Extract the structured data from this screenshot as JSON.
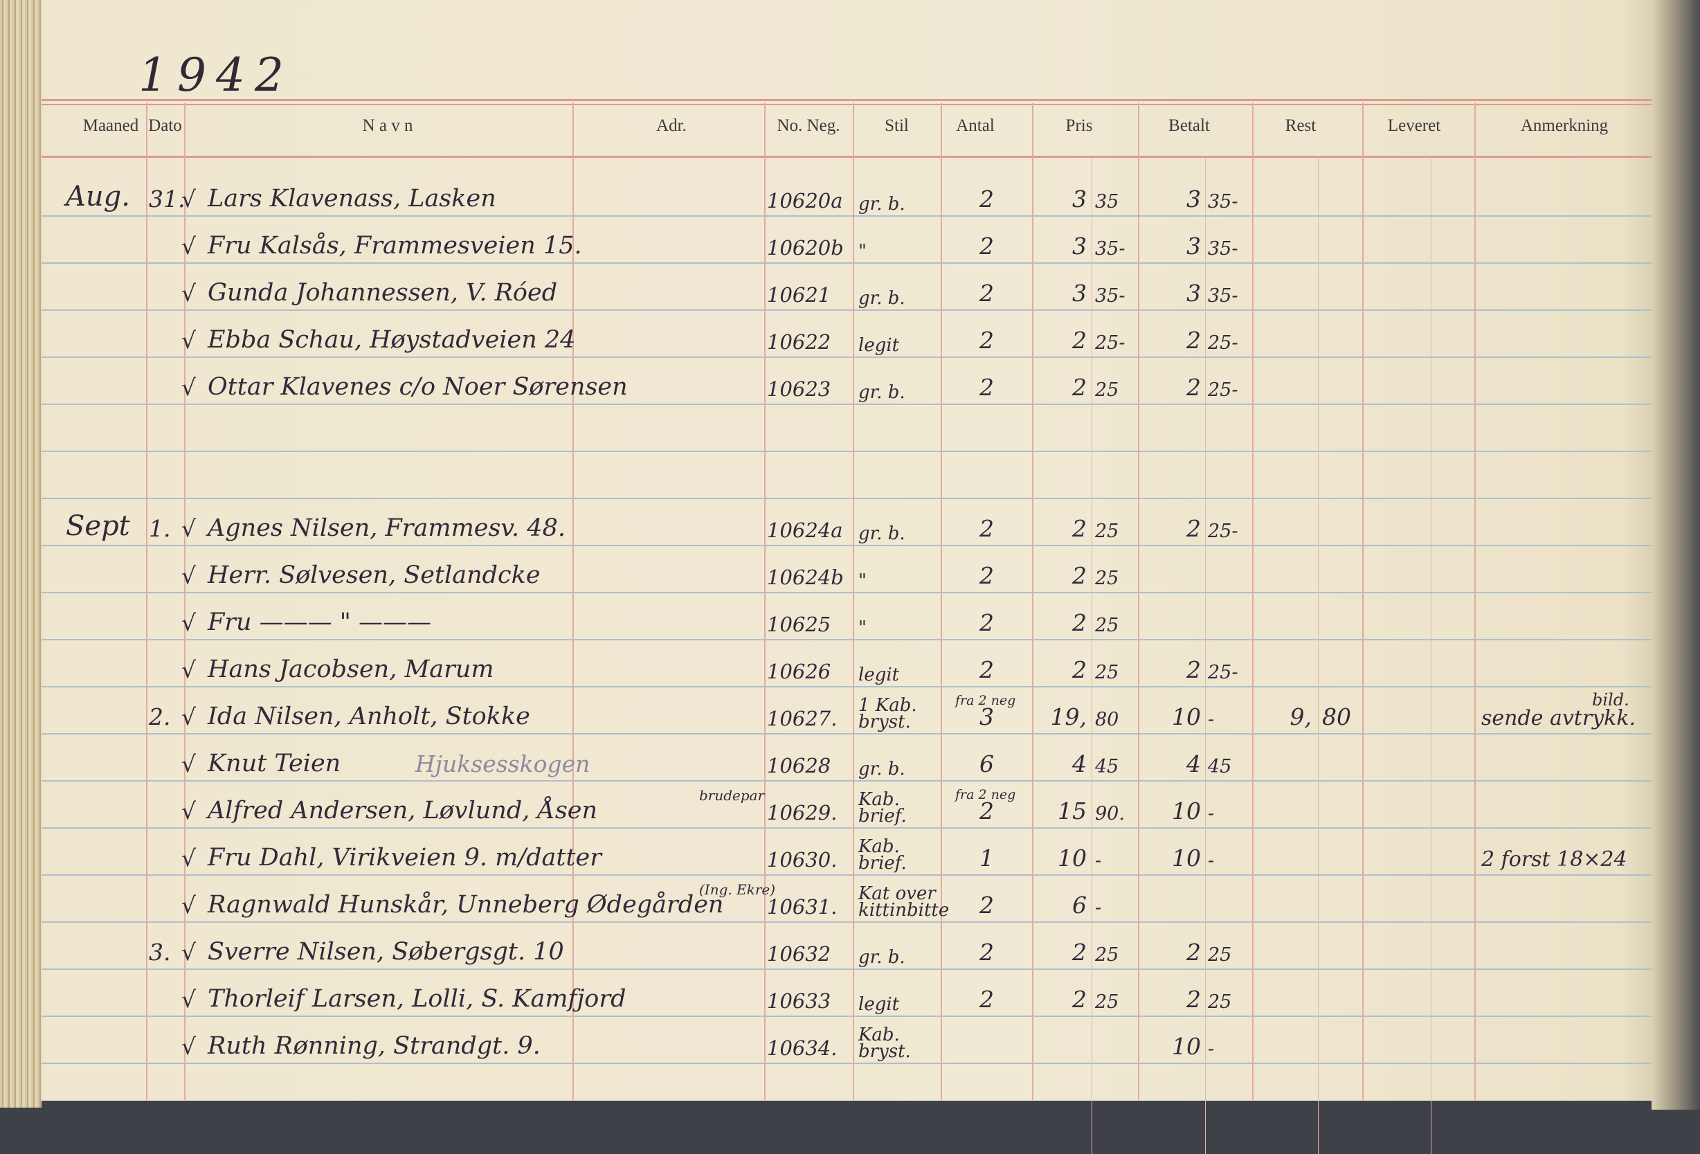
{
  "year": "1942",
  "headers": {
    "month": "Maaned",
    "day": "Dato",
    "name": "N a v n",
    "address": "Adr.",
    "neg_no": "No. Neg.",
    "style": "Stil",
    "quantity": "Antal",
    "price": "Pris",
    "paid": "Betalt",
    "remaining": "Rest",
    "delivered": "Leveret",
    "remarks": "Anmerkning"
  },
  "colors": {
    "paper": "#f0e9d3",
    "red_rule": "#de9a8e",
    "blue_rule": "#aebfcc",
    "ink": "#33293a"
  },
  "entries": [
    {
      "month": "Aug.",
      "day": "31.",
      "check": "√",
      "name": "Lars Klavenass, Lasken",
      "neg": "10620a",
      "style": "gr. b.",
      "qty": "2",
      "price_kr": "3",
      "price_ore": "35",
      "paid_kr": "3",
      "paid_ore": "35-"
    },
    {
      "check": "√",
      "name": "Fru Kalsås, Frammesveien 15.",
      "neg": "10620b",
      "style": "\"",
      "qty": "2",
      "price_kr": "3",
      "price_ore": "35-",
      "paid_kr": "3",
      "paid_ore": "35-"
    },
    {
      "check": "√",
      "name": "Gunda Johannessen, V. Róed",
      "neg": "10621",
      "style": "gr. b.",
      "qty": "2",
      "price_kr": "3",
      "price_ore": "35-",
      "paid_kr": "3",
      "paid_ore": "35-"
    },
    {
      "check": "√",
      "name": "Ebba Schau, Høystadveien 24",
      "neg": "10622",
      "style": "legit",
      "qty": "2",
      "price_kr": "2",
      "price_ore": "25-",
      "paid_kr": "2",
      "paid_ore": "25-"
    },
    {
      "check": "√",
      "name": "Ottar Klavenes c/o Noer Sørensen",
      "neg": "10623",
      "style": "gr. b.",
      "qty": "2",
      "price_kr": "2",
      "price_ore": "25",
      "paid_kr": "2",
      "paid_ore": "25-"
    },
    {},
    {},
    {
      "month": "Sept",
      "day": "1.",
      "check": "√",
      "name": "Agnes Nilsen, Frammesv. 48.",
      "neg": "10624a",
      "style": "gr. b.",
      "qty": "2",
      "price_kr": "2",
      "price_ore": "25",
      "paid_kr": "2",
      "paid_ore": "25-"
    },
    {
      "check": "√",
      "name": "Herr. Sølvesen, Setlandcke",
      "neg": "10624b",
      "style": "\"",
      "qty": "2",
      "price_kr": "2",
      "price_ore": "25"
    },
    {
      "check": "√",
      "name": "Fru  ——— \" ———",
      "neg": "10625",
      "style": "\"",
      "qty": "2",
      "price_kr": "2",
      "price_ore": "25"
    },
    {
      "check": "√",
      "name": "Hans Jacobsen, Marum",
      "neg": "10626",
      "style": "legit",
      "qty": "2",
      "price_kr": "2",
      "price_ore": "25",
      "paid_kr": "2",
      "paid_ore": "25-"
    },
    {
      "day": "2.",
      "check": "√",
      "name": "Ida Nilsen, Anholt, Stokke",
      "neg": "10627.",
      "style": "1 Kab. bryst.",
      "qty_note": "fra 2 neg",
      "qty": "3",
      "price_kr": "19,",
      "price_ore": "80",
      "paid_kr": "10",
      "paid_ore": "-",
      "rest_kr": "9,",
      "rest_ore": "80",
      "remark_top": "bild.",
      "remark": "sende avtrykk."
    },
    {
      "check": "√",
      "name": "Knut Teien",
      "name_extra": "Hjuksesskogen",
      "neg": "10628",
      "style": "gr. b.",
      "qty": "6",
      "price_kr": "4",
      "price_ore": "45",
      "paid_kr": "4",
      "paid_ore": "45"
    },
    {
      "check": "√",
      "name": "Alfred Andersen, Løvlund, Åsen",
      "name_note": "brudepar",
      "neg": "10629.",
      "style": "Kab. brief.",
      "qty_note": "fra 2 neg",
      "qty": "2",
      "price_kr": "15",
      "price_ore": "90.",
      "paid_kr": "10",
      "paid_ore": "-"
    },
    {
      "check": "√",
      "name": "Fru Dahl, Virikveien 9. m/datter",
      "neg": "10630.",
      "style": "Kab. brief.",
      "qty": "1",
      "price_kr": "10",
      "price_ore": "-",
      "paid_kr": "10",
      "paid_ore": "-",
      "remark": "2 forst 18×24"
    },
    {
      "check": "√",
      "name": "Ragnwald Hunskår, Unneberg Ødegården",
      "name_note": "(Ing. Ekre)",
      "neg": "10631.",
      "style": "Kat over kittinbitte",
      "qty": "2",
      "price_kr": "6",
      "price_ore": "-"
    },
    {
      "day": "3.",
      "check": "√",
      "name": "Sverre Nilsen, Søbergsgt. 10",
      "neg": "10632",
      "style": "gr. b.",
      "qty": "2",
      "price_kr": "2",
      "price_ore": "25",
      "paid_kr": "2",
      "paid_ore": "25"
    },
    {
      "check": "√",
      "name": "Thorleif Larsen, Lolli, S. Kamfjord",
      "neg": "10633",
      "style": "legit",
      "qty": "2",
      "price_kr": "2",
      "price_ore": "25",
      "paid_kr": "2",
      "paid_ore": "25"
    },
    {
      "check": "√",
      "name": "Ruth Rønning, Strandgt. 9.",
      "neg": "10634.",
      "style": "Kab. bryst.",
      "paid_kr": "10",
      "paid_ore": "-"
    }
  ]
}
